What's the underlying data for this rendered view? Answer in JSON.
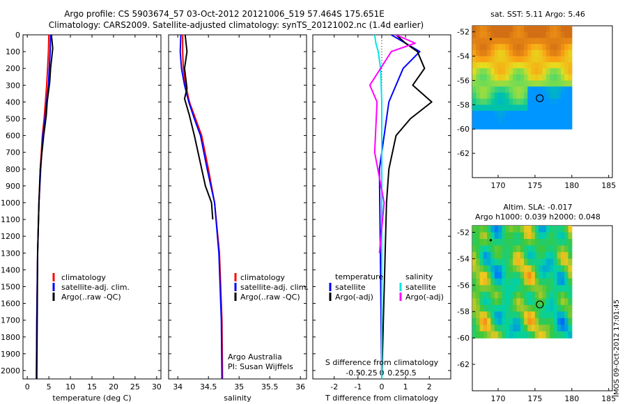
{
  "header": {
    "title_line1": "Argo profile: CS 5903674_57 03-Oct-2012 20121006_519 57.464S 175.651E",
    "title_line2": "Climatology: CARS2009. Satellite-adjusted climatology: synTS_20121002.nc (1.4d earlier)"
  },
  "side_label": "IMOS 09-Oct-2012 17:01:45",
  "colors": {
    "climatology": "#ff0000",
    "satellite": "#0000ff",
    "argo": "#000000",
    "salinity_satellite": "#00e5e5",
    "salinity_argo": "#ff00ff"
  },
  "chart_data": [
    {
      "id": "temperature",
      "type": "line",
      "xlabel": "temperature (deg C)",
      "ylim": [
        2050,
        0
      ],
      "xlim": [
        -1,
        31
      ],
      "yticks": [
        "0",
        "100",
        "200",
        "300",
        "400",
        "500",
        "600",
        "700",
        "800",
        "900",
        "1000",
        "1100",
        "1200",
        "1300",
        "1400",
        "1500",
        "1600",
        "1700",
        "1800",
        "1900",
        "2000"
      ],
      "xticks": [
        "0",
        "5",
        "10",
        "15",
        "20",
        "25",
        "30"
      ],
      "legend": [
        "climatology",
        "satellite-adj. clim.",
        "Argo(..raw -QC)"
      ],
      "series": [
        {
          "name": "climatology",
          "x": [
            5.0,
            4.9,
            4.7,
            4.5,
            4.2,
            3.9,
            3.5,
            3.0,
            2.7,
            2.4,
            2.2,
            2.1
          ],
          "y": [
            0,
            100,
            200,
            300,
            400,
            500,
            600,
            800,
            1000,
            1300,
            1700,
            2050
          ]
        },
        {
          "name": "satellite-adj. clim.",
          "x": [
            5.4,
            5.3,
            5.1,
            4.9,
            4.5,
            4.1,
            3.6,
            3.1,
            2.7,
            2.4,
            2.2,
            2.1
          ],
          "y": [
            0,
            100,
            200,
            300,
            400,
            500,
            600,
            800,
            1000,
            1300,
            1700,
            2050
          ]
        },
        {
          "name": "Argo(..raw -QC)",
          "x": [
            5.6,
            5.9,
            5.4,
            5.2,
            4.6,
            4.4,
            3.8,
            3.4,
            3.0,
            2.7,
            2.4,
            2.3,
            2.2
          ],
          "y": [
            0,
            80,
            200,
            280,
            400,
            480,
            600,
            700,
            800,
            1000,
            1300,
            1700,
            2050
          ]
        }
      ]
    },
    {
      "id": "salinity",
      "type": "line",
      "xlabel": "salinity",
      "ylim": [
        2050,
        0
      ],
      "xlim": [
        33.85,
        36.1
      ],
      "xticks": [
        "34",
        "34.5",
        "35",
        "35.5",
        "36"
      ],
      "legend": [
        "climatology",
        "satellite-adj. clim.",
        "Argo(..raw -QC)"
      ],
      "annotation": [
        "Argo Australia",
        "PI: Susan Wijffels"
      ],
      "series": [
        {
          "name": "climatology",
          "x": [
            34.08,
            34.08,
            34.09,
            34.13,
            34.19,
            34.29,
            34.39,
            34.5,
            34.6,
            34.68,
            34.72,
            34.73
          ],
          "y": [
            0,
            100,
            200,
            300,
            400,
            500,
            600,
            800,
            1000,
            1300,
            1700,
            2050
          ]
        },
        {
          "name": "satellite-adj. clim.",
          "x": [
            34.05,
            34.04,
            34.06,
            34.11,
            34.18,
            34.27,
            34.37,
            34.48,
            34.6,
            34.67,
            34.71,
            34.72
          ],
          "y": [
            0,
            100,
            200,
            300,
            400,
            500,
            600,
            800,
            1000,
            1300,
            1700,
            2050
          ]
        },
        {
          "name": "Argo(..raw -QC)",
          "x": [
            34.12,
            34.15,
            34.11,
            34.15,
            34.11,
            34.19,
            34.27,
            34.36,
            34.45,
            34.55,
            34.57
          ],
          "y": [
            0,
            100,
            200,
            320,
            380,
            480,
            600,
            750,
            900,
            1000,
            1100
          ]
        }
      ]
    },
    {
      "id": "difference",
      "type": "line",
      "xlabel": "T difference from climatology",
      "xlabel_top": "S difference from climatology",
      "ylim": [
        2050,
        0
      ],
      "xlim": [
        -2.9,
        2.9
      ],
      "xticks": [
        "-2",
        "-1",
        "0",
        "1",
        "2"
      ],
      "xticks_top": [
        "-0.5",
        "-0.25",
        "0",
        "0.25",
        "0.5"
      ],
      "legend_left": [
        "temperature",
        "satellite",
        "Argo(-adj)"
      ],
      "legend_right": [
        "salinity",
        "satellite",
        "Argo(-adj)"
      ],
      "series": [
        {
          "name": "temperature satellite",
          "x": [
            0.4,
            1.0,
            1.6,
            0.9,
            0.3,
            -0.1,
            0.0
          ],
          "y": [
            0,
            50,
            100,
            200,
            400,
            800,
            2050
          ]
        },
        {
          "name": "temperature Argo(-adj)",
          "x": [
            0.6,
            1.0,
            1.5,
            1.8,
            1.3,
            2.1,
            1.2,
            0.6,
            0.3,
            0.2,
            0.0
          ],
          "y": [
            0,
            50,
            100,
            200,
            300,
            400,
            500,
            600,
            800,
            1000,
            2050
          ]
        },
        {
          "name": "salinity satellite",
          "x": [
            -0.3,
            -0.25,
            -0.15,
            -0.05,
            0.0,
            0.0
          ],
          "y": [
            0,
            50,
            100,
            200,
            400,
            2050
          ]
        },
        {
          "name": "salinity Argo(-adj)",
          "x": [
            0.6,
            1.4,
            0.4,
            -0.5,
            -0.2,
            -0.3,
            0.1,
            -0.1
          ],
          "y": [
            0,
            50,
            100,
            300,
            400,
            700,
            1000,
            1300
          ]
        }
      ]
    },
    {
      "id": "sst_map",
      "type": "heatmap",
      "title": "sat. SST: 5.11  Argo: 5.46",
      "xlim": [
        166.5,
        185.5
      ],
      "ylim": [
        -64,
        -51.5
      ],
      "xticks": [
        "170",
        "175",
        "180",
        "185"
      ],
      "yticks": [
        "-52",
        "-54",
        "-56",
        "-58",
        "-60",
        "-62"
      ],
      "profile_marker": [
        175.651,
        -57.464
      ],
      "start_marker": [
        169.0,
        -52.6
      ]
    },
    {
      "id": "sla_map",
      "type": "heatmap",
      "title_line1": "Altim. SLA: -0.017",
      "title_line2": "Argo h1000: 0.039 h2000: 0.048",
      "xlim": [
        166.5,
        185.5
      ],
      "ylim": [
        -64,
        -51.5
      ],
      "xticks": [
        "170",
        "175",
        "180",
        "185"
      ],
      "yticks": [
        "-52",
        "-54",
        "-56",
        "-58",
        "-60",
        "-62"
      ],
      "profile_marker": [
        175.651,
        -57.464
      ],
      "start_marker": [
        169.0,
        -52.6
      ]
    }
  ]
}
